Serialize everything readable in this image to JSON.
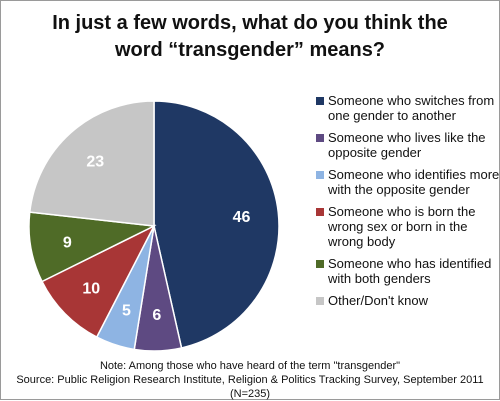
{
  "chart_data": {
    "type": "pie",
    "title_lines": [
      "In just a few words, what do you think the",
      "word “transgender” means?"
    ],
    "slices": [
      {
        "label": "Someone who switches from one gender to another",
        "value": 46,
        "color": "#1f3864"
      },
      {
        "label": "Someone who lives like the opposite gender",
        "value": 6,
        "color": "#5e4a82"
      },
      {
        "label": "Someone who identifies more with the opposite gender",
        "value": 5,
        "color": "#8eb4e3"
      },
      {
        "label": "Someone who is born the wrong sex or born in the wrong body",
        "value": 10,
        "color": "#a83636"
      },
      {
        "label": "Someone who has identified with both genders",
        "value": 9,
        "color": "#4f6b27"
      },
      {
        "label": "Other/Don't know",
        "value": 23,
        "color": "#c6c6c6"
      }
    ],
    "legend_position": "right",
    "start": "12 o'clock, clockwise"
  },
  "footnote": {
    "note": "Note: Among those who have heard of the term \"transgender\"",
    "source": "Source: Public Religion Research Institute, Religion & Politics Tracking Survey, September 2011 (N=235)"
  }
}
